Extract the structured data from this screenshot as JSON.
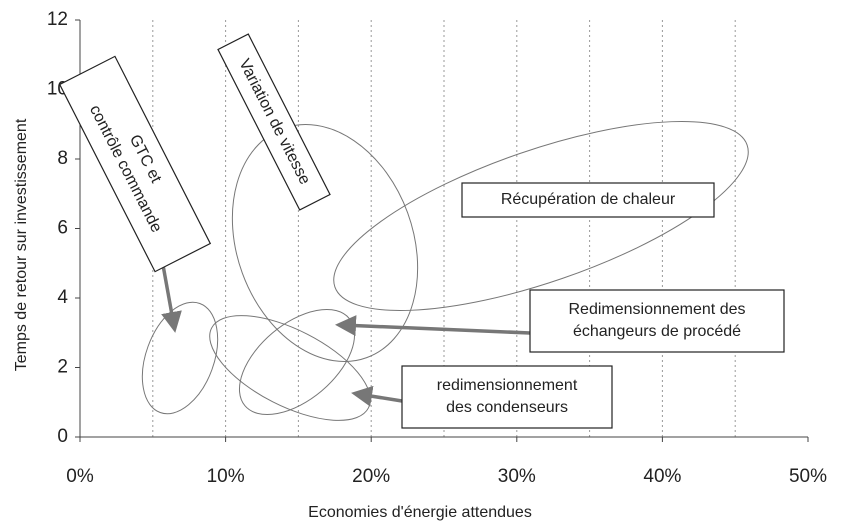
{
  "chart_data": {
    "type": "region",
    "xlabel": "Economies d'énergie attendues",
    "ylabel": "Temps de retour sur investissement",
    "xlim": [
      0,
      50
    ],
    "ylim": [
      0,
      12
    ],
    "xticks": [
      {
        "value": 0,
        "label": "0%"
      },
      {
        "value": 10,
        "label": "10%"
      },
      {
        "value": 20,
        "label": "20%"
      },
      {
        "value": 30,
        "label": "30%"
      },
      {
        "value": 40,
        "label": "40%"
      },
      {
        "value": 50,
        "label": "50%"
      }
    ],
    "yticks": [
      0,
      2,
      4,
      6,
      8,
      10,
      12
    ],
    "xgrid": [
      5,
      10,
      15,
      20,
      25,
      30,
      35,
      40,
      45
    ],
    "annotations": [
      {
        "lines": [
          "GTC et",
          "contrôle commande"
        ]
      },
      {
        "lines": [
          "Variation de vitesse"
        ]
      },
      {
        "lines": [
          "Récupération de chaleur"
        ]
      },
      {
        "lines": [
          "Redimensionnement des",
          "échangeurs de procédé"
        ]
      },
      {
        "lines": [
          "redimensionnement",
          "des condenseurs"
        ]
      }
    ]
  }
}
